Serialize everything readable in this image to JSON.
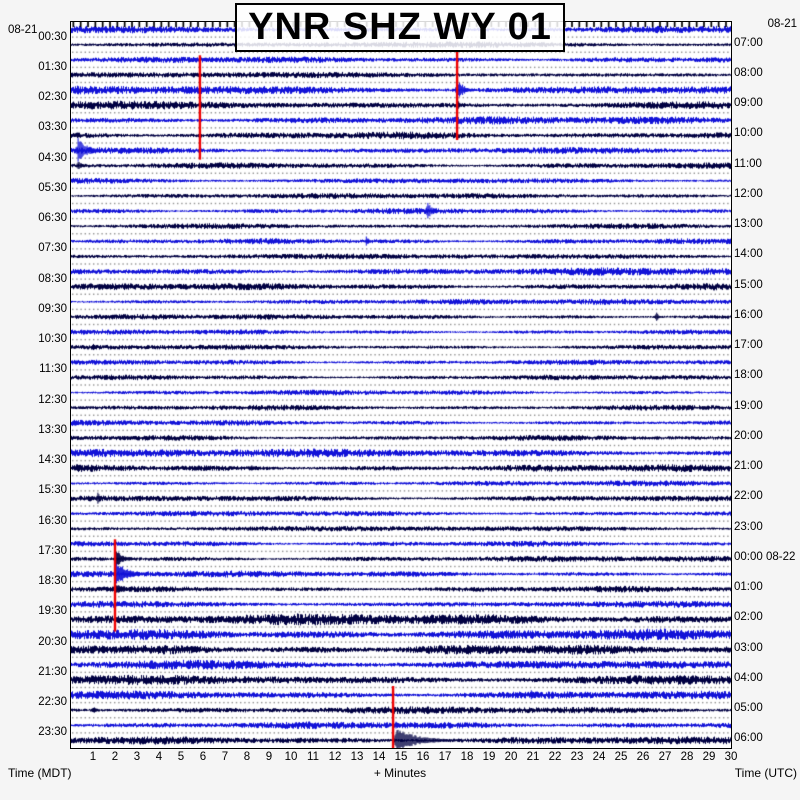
{
  "title": "YNR SHZ WY 01",
  "dates": {
    "top_left": "08-21",
    "top_right": "08-21"
  },
  "axis": {
    "left_caption": "Time (MDT)",
    "right_caption": "Time (UTC)",
    "bottom_label": "+ Minutes",
    "minutes": [
      1,
      2,
      3,
      4,
      5,
      6,
      7,
      8,
      9,
      10,
      11,
      12,
      13,
      14,
      15,
      16,
      17,
      18,
      19,
      20,
      21,
      22,
      23,
      24,
      25,
      26,
      27,
      28,
      29,
      30
    ]
  },
  "left_times": [
    "00:30",
    "01:30",
    "02:30",
    "03:30",
    "04:30",
    "05:30",
    "06:30",
    "07:30",
    "08:30",
    "09:30",
    "10:30",
    "11:30",
    "12:30",
    "13:30",
    "14:30",
    "15:30",
    "16:30",
    "17:30",
    "18:30",
    "19:30",
    "20:30",
    "21:30",
    "22:30",
    "23:30"
  ],
  "right_times": [
    "07:00",
    "08:00",
    "09:00",
    "10:00",
    "11:00",
    "12:00",
    "13:00",
    "14:00",
    "15:00",
    "16:00",
    "17:00",
    "18:00",
    "19:00",
    "20:00",
    "21:00",
    "22:00",
    "23:00",
    "00:00 08-22",
    "01:00",
    "02:00",
    "03:00",
    "04:00",
    "05:00",
    "06:00"
  ],
  "colors": {
    "trace_blue": "#1212d8",
    "trace_dark": "#000042",
    "marker_red": "#ee0000",
    "baseline_dot": "#8f8f8f",
    "plot_bg": "#ffffff",
    "page_bg": "#f5f5f5",
    "border": "#000000"
  },
  "chart_data": {
    "type": "line",
    "title": "YNR SHZ WY 01",
    "xlabel": "+ Minutes",
    "ylabel_left": "Time (MDT)",
    "ylabel_right": "Time (UTC)",
    "description": "24-hour helicorder/webicorder seismogram; 48 horizontal trace lines of 30 minutes each, alternating blue and dark-navy; left axis local MDT half-hour start times, right axis UTC hour times, x axis minutes 1-30",
    "rows": 48,
    "minutes_per_row": 30,
    "x_range_minutes": [
      0,
      30
    ],
    "row_noise_amp": [
      3.2,
      2.8,
      3.0,
      2.8,
      4.2,
      3.8,
      3.6,
      3.4,
      3.0,
      2.8,
      2.6,
      2.6,
      2.6,
      2.5,
      2.6,
      2.5,
      3.6,
      3.2,
      2.6,
      2.5,
      2.4,
      2.4,
      2.4,
      2.4,
      2.4,
      2.5,
      2.6,
      2.6,
      3.8,
      3.4,
      2.6,
      2.8,
      2.6,
      2.5,
      2.6,
      2.8,
      3.0,
      2.8,
      3.0,
      5.2,
      5.2,
      4.6,
      4.2,
      4.4,
      3.8,
      3.4,
      3.4,
      3.6
    ],
    "events": [
      {
        "row": 4,
        "minute": 17.55,
        "amp": 11,
        "tail": 18
      },
      {
        "row": 5,
        "minute": 17.55,
        "amp": 5,
        "tail": 10
      },
      {
        "row": 5,
        "minute": 5.9,
        "amp": 3.5,
        "tail": 8
      },
      {
        "row": 8,
        "minute": 0.3,
        "amp": 13,
        "tail": 25
      },
      {
        "row": 9,
        "minute": 0.3,
        "amp": 5,
        "tail": 12
      },
      {
        "row": 12,
        "minute": 16.2,
        "amp": 10,
        "tail": 12
      },
      {
        "row": 14,
        "minute": 13.4,
        "amp": 5,
        "tail": 8
      },
      {
        "row": 19,
        "minute": 26.6,
        "amp": 5,
        "tail": 6
      },
      {
        "row": 21,
        "minute": 1.0,
        "amp": 4,
        "tail": 10
      },
      {
        "row": 28,
        "minute": 11.0,
        "amp": 4,
        "tail": 8
      },
      {
        "row": 29,
        "minute": 8.2,
        "amp": 4,
        "tail": 7
      },
      {
        "row": 31,
        "minute": 1.2,
        "amp": 6,
        "tail": 8
      },
      {
        "row": 35,
        "minute": 2.05,
        "amp": 9,
        "tail": 20
      },
      {
        "row": 36,
        "minute": 2.05,
        "amp": 13,
        "tail": 30
      },
      {
        "row": 37,
        "minute": 2.05,
        "amp": 6,
        "tail": 25
      },
      {
        "row": 38,
        "minute": 2.05,
        "amp": 3,
        "tail": 15
      },
      {
        "row": 44,
        "minute": 20.9,
        "amp": 7,
        "tail": 10
      },
      {
        "row": 45,
        "minute": 1.0,
        "amp": 4,
        "tail": 8
      },
      {
        "row": 46,
        "minute": 14.75,
        "amp": 4,
        "tail": 10
      },
      {
        "row": 47,
        "minute": 14.75,
        "amp": 12,
        "tail": 60
      }
    ],
    "red_markers": [
      {
        "minute": 5.86,
        "row_from": 2.2,
        "row_to": 9.1
      },
      {
        "minute": 17.55,
        "row_from": 1.9,
        "row_to": 7.8
      },
      {
        "minute": 2.0,
        "row_from": 34.2,
        "row_to": 40.3
      },
      {
        "minute": 14.64,
        "row_from": 43.9,
        "row_to": 48.0
      }
    ],
    "render_seed": 20210821
  }
}
